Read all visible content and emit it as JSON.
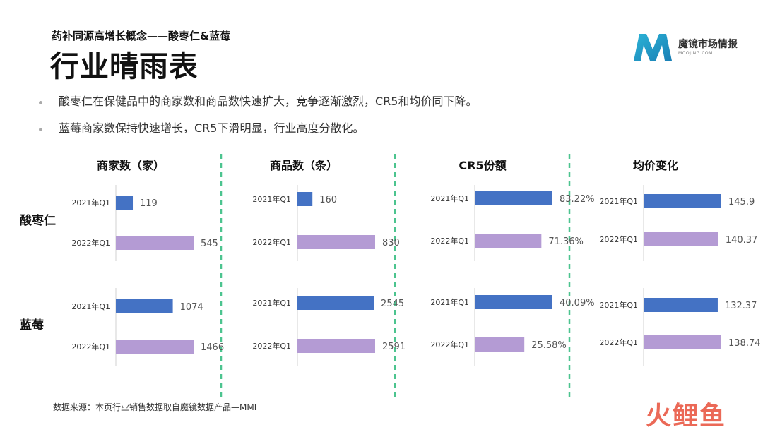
{
  "header": {
    "subtitle": "药补同源高增长概念——酸枣仁&蓝莓",
    "title": "行业晴雨表"
  },
  "logo": {
    "name": "魔镜市场情报",
    "sub": "MOOJING.COM"
  },
  "bullets": [
    "酸枣仁在保健品中的商家数和商品数快速扩大，竞争逐渐激烈，CR5和均价同下降。",
    "蓝莓商家数保持快速增长，CR5下滑明显，行业高度分散化。"
  ],
  "row_labels": [
    "酸枣仁",
    "蓝莓"
  ],
  "source": "数据来源：本页行业销售数据取自魔镜数据产品—MMI",
  "watermark": "火鲤鱼",
  "colors": {
    "q2021": "#4472c4",
    "q2022": "#b49bd4",
    "divider": "#4cc48f"
  },
  "chart_data": [
    {
      "type": "bar",
      "title": "商家数（家）",
      "categories": [
        "2021年Q1",
        "2022年Q1"
      ],
      "series": [
        {
          "name": "酸枣仁",
          "values": [
            119,
            545
          ],
          "labels": [
            "119",
            "545"
          ]
        },
        {
          "name": "蓝莓",
          "values": [
            1074,
            1466
          ],
          "labels": [
            "1074",
            "1466"
          ]
        }
      ]
    },
    {
      "type": "bar",
      "title": "商品数（条）",
      "categories": [
        "2021年Q1",
        "2022年Q1"
      ],
      "series": [
        {
          "name": "酸枣仁",
          "values": [
            160,
            830
          ],
          "labels": [
            "160",
            "830"
          ]
        },
        {
          "name": "蓝莓",
          "values": [
            2545,
            2591
          ],
          "labels": [
            "2545",
            "2591"
          ]
        }
      ]
    },
    {
      "type": "bar",
      "title": "CR5份额",
      "categories": [
        "2021年Q1",
        "2022年Q1"
      ],
      "series": [
        {
          "name": "酸枣仁",
          "values": [
            83.22,
            71.36
          ],
          "labels": [
            "83.22%",
            "71.36%"
          ]
        },
        {
          "name": "蓝莓",
          "values": [
            40.09,
            25.58
          ],
          "labels": [
            "40.09%",
            "25.58%"
          ]
        }
      ]
    },
    {
      "type": "bar",
      "title": "均价变化",
      "categories": [
        "2021年Q1",
        "2022年Q1"
      ],
      "series": [
        {
          "name": "酸枣仁",
          "values": [
            145.9,
            140.37
          ],
          "labels": [
            "145.9",
            "140.37"
          ]
        },
        {
          "name": "蓝莓",
          "values": [
            132.37,
            138.74
          ],
          "labels": [
            "132.37",
            "138.74"
          ]
        }
      ]
    }
  ]
}
